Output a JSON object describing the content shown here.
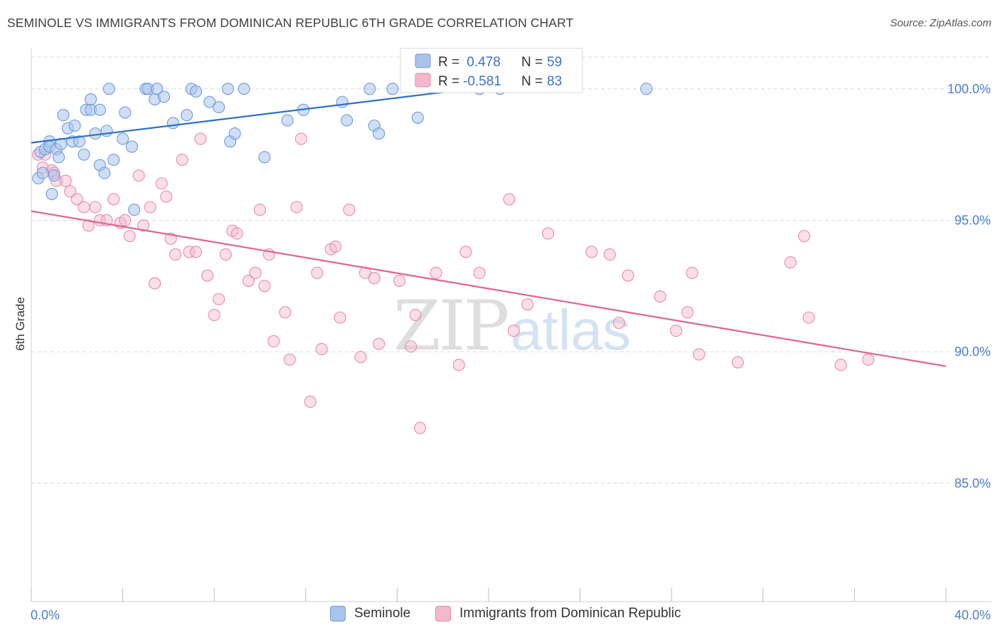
{
  "header": {
    "title": "SEMINOLE VS IMMIGRANTS FROM DOMINICAN REPUBLIC 6TH GRADE CORRELATION CHART",
    "source": "Source: ZipAtlas.com"
  },
  "watermark": {
    "zip": "ZIP",
    "atlas": "atlas"
  },
  "legend": {
    "rows": [
      {
        "r_label": "R =",
        "r_value": " 0.478",
        "n_label": "N =",
        "n_value": "59"
      },
      {
        "r_label": "R =",
        "r_value": "-0.581",
        "n_label": "N =",
        "n_value": "83"
      }
    ]
  },
  "bottom_legend": {
    "series1": "Seminole",
    "series2": "Immigrants from Dominican Republic"
  },
  "colors": {
    "series1_fill": "#a9c4ec",
    "series1_stroke": "#6f9bd8",
    "series1_line": "#2d6fcc",
    "series2_fill": "#f4b8cc",
    "series2_stroke": "#e98aaa",
    "series2_line": "#e0648e",
    "tick_text": "#4a7fcf",
    "grid": "#dcdcdc"
  },
  "chart_data": {
    "type": "scatter",
    "title": "SEMINOLE VS IMMIGRANTS FROM DOMINICAN REPUBLIC 6TH GRADE CORRELATION CHART",
    "xlabel": "",
    "ylabel": "6th Grade",
    "xlim": [
      0,
      40
    ],
    "ylim": [
      80.5,
      101.7
    ],
    "x_tick_labels": [
      "0.0%",
      "40.0%"
    ],
    "y_ticks": [
      85,
      90,
      95,
      100
    ],
    "y_tick_labels": [
      "85.0%",
      "90.0%",
      "95.0%",
      "100.0%"
    ],
    "grid": "horizontal dashed",
    "legend_position": "top-center",
    "series": [
      {
        "name": "Seminole",
        "R": 0.478,
        "N": 59,
        "trend": {
          "x": [
            0,
            19.2
          ],
          "y": [
            97.95,
            100.0
          ]
        },
        "points": [
          [
            0.3,
            96.6
          ],
          [
            0.4,
            97.6
          ],
          [
            0.5,
            96.8
          ],
          [
            0.6,
            97.7
          ],
          [
            0.8,
            98.0
          ],
          [
            0.8,
            97.8
          ],
          [
            0.9,
            96.0
          ],
          [
            1.0,
            96.7
          ],
          [
            1.1,
            97.7
          ],
          [
            1.2,
            97.4
          ],
          [
            1.3,
            97.9
          ],
          [
            1.4,
            99.0
          ],
          [
            1.6,
            98.5
          ],
          [
            1.8,
            98.0
          ],
          [
            1.9,
            98.6
          ],
          [
            2.1,
            98.0
          ],
          [
            2.3,
            97.5
          ],
          [
            2.4,
            99.2
          ],
          [
            2.6,
            99.2
          ],
          [
            2.6,
            99.6
          ],
          [
            2.8,
            98.3
          ],
          [
            3.0,
            97.1
          ],
          [
            3.0,
            99.2
          ],
          [
            3.2,
            96.8
          ],
          [
            3.3,
            98.4
          ],
          [
            3.4,
            100.0
          ],
          [
            3.6,
            97.3
          ],
          [
            4.0,
            98.1
          ],
          [
            4.1,
            99.1
          ],
          [
            4.4,
            97.8
          ],
          [
            4.5,
            95.4
          ],
          [
            5.0,
            100.0
          ],
          [
            5.1,
            100.0
          ],
          [
            5.4,
            99.6
          ],
          [
            5.5,
            100.0
          ],
          [
            5.8,
            99.7
          ],
          [
            6.2,
            98.7
          ],
          [
            6.8,
            99.0
          ],
          [
            7.0,
            100.0
          ],
          [
            7.2,
            99.9
          ],
          [
            7.8,
            99.5
          ],
          [
            8.2,
            99.3
          ],
          [
            8.6,
            100.0
          ],
          [
            8.7,
            98.0
          ],
          [
            8.9,
            98.3
          ],
          [
            9.3,
            100.0
          ],
          [
            10.2,
            97.4
          ],
          [
            11.2,
            98.8
          ],
          [
            11.9,
            99.2
          ],
          [
            13.6,
            99.5
          ],
          [
            13.8,
            98.8
          ],
          [
            14.8,
            100.0
          ],
          [
            15.0,
            98.6
          ],
          [
            15.2,
            98.3
          ],
          [
            15.8,
            100.0
          ],
          [
            16.9,
            98.9
          ],
          [
            19.6,
            100.0
          ],
          [
            20.5,
            100.0
          ],
          [
            26.9,
            100.0
          ]
        ]
      },
      {
        "name": "Immigrants from Dominican Republic",
        "R": -0.581,
        "N": 83,
        "trend": {
          "x": [
            0,
            40
          ],
          "y": [
            95.35,
            89.45
          ]
        },
        "points": [
          [
            0.3,
            97.5
          ],
          [
            0.5,
            97.0
          ],
          [
            0.6,
            97.5
          ],
          [
            0.9,
            96.9
          ],
          [
            1.0,
            96.8
          ],
          [
            1.1,
            96.5
          ],
          [
            1.5,
            96.5
          ],
          [
            1.7,
            96.1
          ],
          [
            2.0,
            95.8
          ],
          [
            2.3,
            95.5
          ],
          [
            2.5,
            94.8
          ],
          [
            2.8,
            95.5
          ],
          [
            3.0,
            95.0
          ],
          [
            3.3,
            95.0
          ],
          [
            3.6,
            95.8
          ],
          [
            3.9,
            94.9
          ],
          [
            4.1,
            95.0
          ],
          [
            4.3,
            94.4
          ],
          [
            4.7,
            96.7
          ],
          [
            4.9,
            94.8
          ],
          [
            5.2,
            95.5
          ],
          [
            5.4,
            92.6
          ],
          [
            5.7,
            96.4
          ],
          [
            5.9,
            95.9
          ],
          [
            6.1,
            94.3
          ],
          [
            6.3,
            93.7
          ],
          [
            6.6,
            97.3
          ],
          [
            6.9,
            93.8
          ],
          [
            7.2,
            93.8
          ],
          [
            7.4,
            98.1
          ],
          [
            7.7,
            92.9
          ],
          [
            8.0,
            91.4
          ],
          [
            8.2,
            92.0
          ],
          [
            8.5,
            93.7
          ],
          [
            8.8,
            94.6
          ],
          [
            9.0,
            94.5
          ],
          [
            9.5,
            92.7
          ],
          [
            9.8,
            93.0
          ],
          [
            10.0,
            95.4
          ],
          [
            10.2,
            92.5
          ],
          [
            10.4,
            93.7
          ],
          [
            10.6,
            90.4
          ],
          [
            11.1,
            91.5
          ],
          [
            11.3,
            89.7
          ],
          [
            11.6,
            95.5
          ],
          [
            11.8,
            98.1
          ],
          [
            12.2,
            88.1
          ],
          [
            12.5,
            93.0
          ],
          [
            12.7,
            90.1
          ],
          [
            13.1,
            93.9
          ],
          [
            13.3,
            94.0
          ],
          [
            13.5,
            91.3
          ],
          [
            13.9,
            95.4
          ],
          [
            14.4,
            89.8
          ],
          [
            14.6,
            93.0
          ],
          [
            15.0,
            92.8
          ],
          [
            15.2,
            90.3
          ],
          [
            16.1,
            92.7
          ],
          [
            16.6,
            90.2
          ],
          [
            16.8,
            91.4
          ],
          [
            17.0,
            87.1
          ],
          [
            17.7,
            93.0
          ],
          [
            18.7,
            89.5
          ],
          [
            19.0,
            93.8
          ],
          [
            19.6,
            93.0
          ],
          [
            20.9,
            95.8
          ],
          [
            21.1,
            90.8
          ],
          [
            21.7,
            91.8
          ],
          [
            22.6,
            94.5
          ],
          [
            24.5,
            93.8
          ],
          [
            25.3,
            93.7
          ],
          [
            25.7,
            91.1
          ],
          [
            26.1,
            92.9
          ],
          [
            27.5,
            92.1
          ],
          [
            28.2,
            90.8
          ],
          [
            28.7,
            91.5
          ],
          [
            28.9,
            93.0
          ],
          [
            29.2,
            89.9
          ],
          [
            30.9,
            89.6
          ],
          [
            33.2,
            93.4
          ],
          [
            33.8,
            94.4
          ],
          [
            34.0,
            91.3
          ],
          [
            35.4,
            89.5
          ],
          [
            36.6,
            89.7
          ]
        ]
      }
    ]
  }
}
